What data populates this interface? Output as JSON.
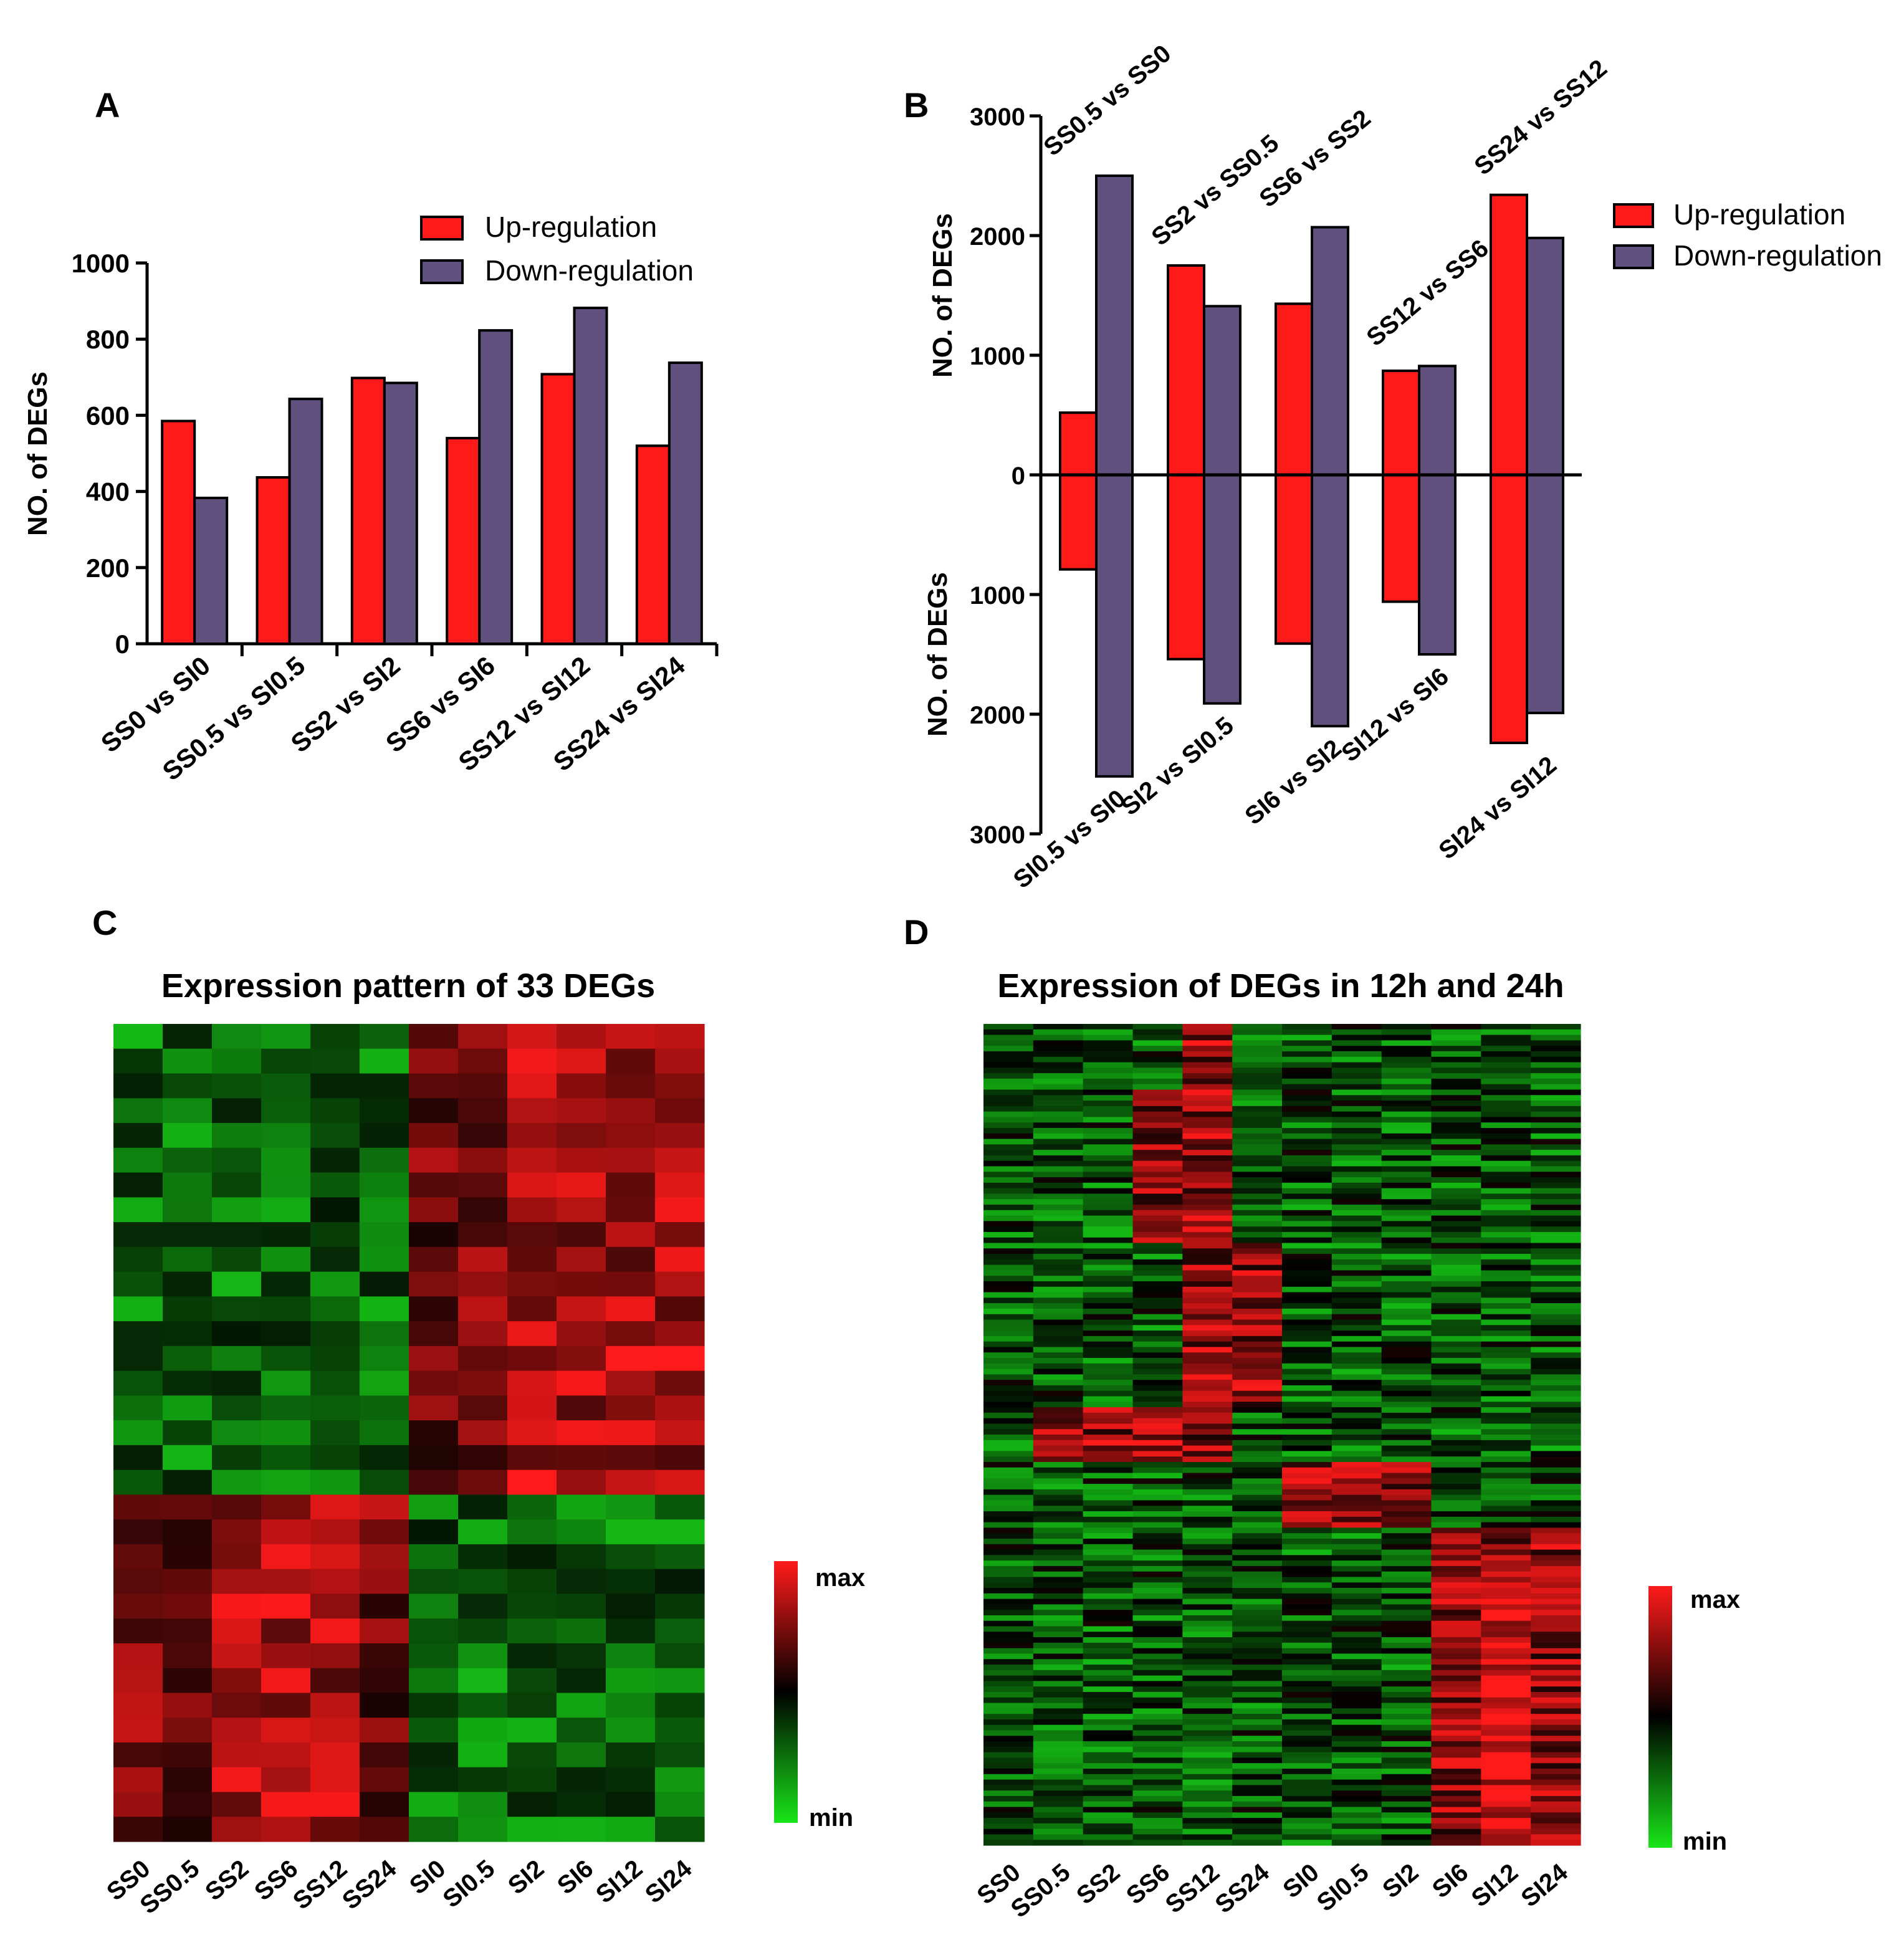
{
  "chart_data": [
    {
      "panel": "A",
      "type": "bar",
      "ylabel": "NO. of DEGs",
      "ylim": [
        0,
        1000
      ],
      "yticks": [
        0,
        200,
        400,
        600,
        800,
        1000
      ],
      "categories": [
        "SS0 vs SI0",
        "SS0.5 vs SI0.5",
        "SS2 vs SI2",
        "SS6 vs SI6",
        "SS12 vs SI12",
        "SS24 vs SI24"
      ],
      "series": [
        {
          "name": "Up-regulation",
          "color": "#ff1a1a",
          "values": [
            585,
            437,
            698,
            540,
            708,
            520
          ]
        },
        {
          "name": "Down-regulation",
          "color": "#5f507d",
          "values": [
            383,
            643,
            685,
            823,
            882,
            738
          ]
        }
      ],
      "legend": "top-right"
    },
    {
      "panel": "B",
      "type": "bar",
      "ylabel_top": "NO. of DEGs",
      "ylabel_bottom": "NO. of DEGs",
      "ylim": [
        -3000,
        3000
      ],
      "ytick_labels": [
        "3000",
        "2000",
        "1000",
        "0",
        "1000",
        "2000",
        "3000"
      ],
      "ytick_values": [
        3000,
        2000,
        1000,
        0,
        -1000,
        -2000,
        -3000
      ],
      "top_categories": [
        "SS0.5 vs SS0",
        "SS2 vs SS0.5",
        "SS6 vs SS2",
        "SS12 vs SS6",
        "SS24 vs SS12"
      ],
      "bottom_categories": [
        "SI0.5 vs SI0",
        "SI2 vs SI0.5",
        "SI6 vs SI2",
        "SI12 vs SI6",
        "SI24 vs SI12"
      ],
      "series": [
        {
          "name": "Up-regulation",
          "color": "#ff1a1a",
          "top": [
            520,
            1750,
            1430,
            870,
            2340
          ],
          "bottom": [
            790,
            1540,
            1410,
            1060,
            2240
          ]
        },
        {
          "name": "Down-regulation",
          "color": "#5f507d",
          "top": [
            2500,
            1410,
            2070,
            910,
            1980
          ],
          "bottom": [
            2520,
            1910,
            2100,
            1500,
            1990
          ]
        }
      ],
      "legend": "top-right"
    },
    {
      "panel": "C",
      "type": "heatmap",
      "title": "Expression pattern of 33 DEGs",
      "columns": [
        "SS0",
        "SS0.5",
        "SS2",
        "SS6",
        "SS12",
        "SS24",
        "SI0",
        "SI0.5",
        "SI2",
        "SI6",
        "SI12",
        "SI24"
      ],
      "row_count": 33,
      "colorbar_max": "max",
      "colorbar_min": "min",
      "color_high": "#ff1a1a",
      "color_mid": "#000000",
      "color_low": "#19e619"
    },
    {
      "panel": "D",
      "type": "heatmap",
      "title": "Expression of DEGs in 12h and 24h",
      "columns": [
        "SS0",
        "SS0.5",
        "SS2",
        "SS6",
        "SS12",
        "SS24",
        "SI0",
        "SI0.5",
        "SI2",
        "SI6",
        "SI12",
        "SI24"
      ],
      "colorbar_max": "max",
      "colorbar_min": "min",
      "color_high": "#ff1a1a",
      "color_mid": "#000000",
      "color_low": "#19e619"
    }
  ],
  "panels": {
    "A": "A",
    "B": "B",
    "C": "C",
    "D": "D"
  }
}
